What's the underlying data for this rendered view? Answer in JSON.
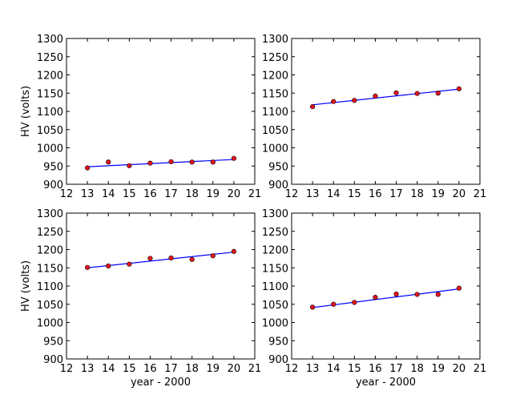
{
  "chart_data": [
    {
      "type": "scatter",
      "xlabel": "",
      "ylabel": "HV (volts)",
      "xlim": [
        12,
        21
      ],
      "ylim": [
        900,
        1300
      ],
      "xticks": [
        12,
        13,
        14,
        15,
        16,
        17,
        18,
        19,
        20,
        21
      ],
      "yticks": [
        900,
        950,
        1000,
        1050,
        1100,
        1150,
        1200,
        1250,
        1300
      ],
      "grid": false,
      "series": [
        {
          "kind": "points",
          "x": [
            13,
            14,
            15,
            16,
            17,
            18,
            19,
            20
          ],
          "y": [
            945,
            961,
            951,
            958,
            962,
            961,
            961,
            971
          ]
        },
        {
          "kind": "fit-line",
          "x": [
            13,
            20
          ],
          "y": [
            948,
            968
          ]
        }
      ]
    },
    {
      "type": "scatter",
      "xlabel": "",
      "ylabel": "",
      "xlim": [
        12,
        21
      ],
      "ylim": [
        900,
        1300
      ],
      "xticks": [
        12,
        13,
        14,
        15,
        16,
        17,
        18,
        19,
        20,
        21
      ],
      "yticks": [
        900,
        950,
        1000,
        1050,
        1100,
        1150,
        1200,
        1250,
        1300
      ],
      "grid": false,
      "series": [
        {
          "kind": "points",
          "x": [
            13,
            14,
            15,
            16,
            17,
            18,
            19,
            20
          ],
          "y": [
            1113,
            1127,
            1130,
            1142,
            1151,
            1149,
            1150,
            1162
          ]
        },
        {
          "kind": "fit-line",
          "x": [
            13,
            20
          ],
          "y": [
            1118,
            1161
          ]
        }
      ]
    },
    {
      "type": "scatter",
      "xlabel": "year - 2000",
      "ylabel": "HV (volts)",
      "xlim": [
        12,
        21
      ],
      "ylim": [
        900,
        1300
      ],
      "xticks": [
        12,
        13,
        14,
        15,
        16,
        17,
        18,
        19,
        20,
        21
      ],
      "yticks": [
        900,
        950,
        1000,
        1050,
        1100,
        1150,
        1200,
        1250,
        1300
      ],
      "grid": false,
      "series": [
        {
          "kind": "points",
          "x": [
            13,
            14,
            15,
            16,
            17,
            18,
            19,
            20
          ],
          "y": [
            1151,
            1155,
            1160,
            1176,
            1177,
            1173,
            1183,
            1195
          ]
        },
        {
          "kind": "fit-line",
          "x": [
            13,
            20
          ],
          "y": [
            1150,
            1193
          ]
        }
      ]
    },
    {
      "type": "scatter",
      "xlabel": "year - 2000",
      "ylabel": "",
      "xlim": [
        12,
        21
      ],
      "ylim": [
        900,
        1300
      ],
      "xticks": [
        12,
        13,
        14,
        15,
        16,
        17,
        18,
        19,
        20,
        21
      ],
      "yticks": [
        900,
        950,
        1000,
        1050,
        1100,
        1150,
        1200,
        1250,
        1300
      ],
      "grid": false,
      "series": [
        {
          "kind": "points",
          "x": [
            13,
            14,
            15,
            16,
            17,
            18,
            19,
            20
          ],
          "y": [
            1042,
            1050,
            1055,
            1069,
            1078,
            1077,
            1077,
            1094
          ]
        },
        {
          "kind": "fit-line",
          "x": [
            13,
            20
          ],
          "y": [
            1041,
            1092
          ]
        }
      ]
    }
  ],
  "colors": {
    "point_fill": "#e8141c",
    "point_edge": "#000000",
    "fit_line": "#0000ff",
    "axes": "#000000"
  }
}
